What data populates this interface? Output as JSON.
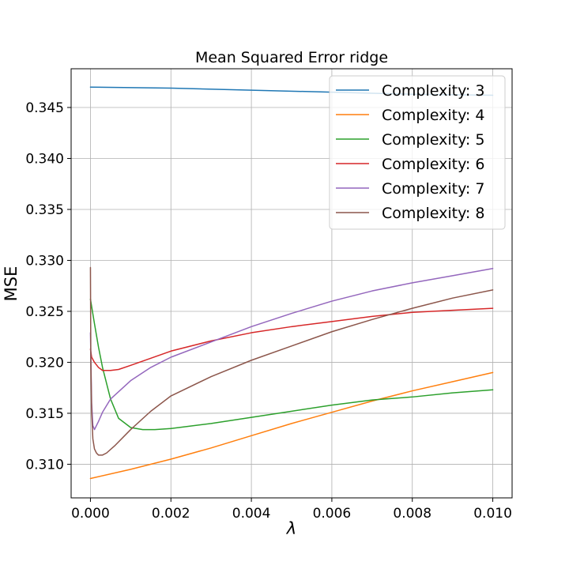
{
  "chart_data": {
    "type": "line",
    "title": "Mean Squared Error ridge",
    "xlabel": "λ",
    "ylabel": "MSE",
    "xlim": [
      -0.00048,
      0.01048
    ],
    "ylim": [
      0.3067,
      0.3488
    ],
    "xticks": [
      0.0,
      0.002,
      0.004,
      0.006,
      0.008,
      0.01
    ],
    "xtick_labels": [
      "0.000",
      "0.002",
      "0.004",
      "0.006",
      "0.008",
      "0.010"
    ],
    "yticks": [
      0.31,
      0.315,
      0.32,
      0.325,
      0.33,
      0.335,
      0.34,
      0.345
    ],
    "ytick_labels": [
      "0.310",
      "0.315",
      "0.320",
      "0.325",
      "0.330",
      "0.335",
      "0.340",
      "0.345"
    ],
    "grid": true,
    "legend_position": "upper-right",
    "series": [
      {
        "name": "Complexity: 3",
        "color": "#1f77b4",
        "x": [
          0.0,
          0.002,
          0.004,
          0.006,
          0.007,
          0.008,
          0.01
        ],
        "y": [
          0.347,
          0.3469,
          0.3467,
          0.3465,
          0.3464,
          0.3463,
          0.3462
        ]
      },
      {
        "name": "Complexity: 4",
        "color": "#ff7f0e",
        "x": [
          0.0,
          0.001,
          0.002,
          0.003,
          0.004,
          0.005,
          0.006,
          0.007,
          0.008,
          0.009,
          0.01
        ],
        "y": [
          0.3086,
          0.3095,
          0.3105,
          0.3116,
          0.3128,
          0.314,
          0.3151,
          0.3162,
          0.3172,
          0.3181,
          0.319
        ]
      },
      {
        "name": "Complexity: 5",
        "color": "#2ca02c",
        "x": [
          0.0,
          5e-05,
          0.0001,
          0.0002,
          0.0003,
          0.0005,
          0.0007,
          0.001,
          0.0013,
          0.0016,
          0.002,
          0.003,
          0.004,
          0.005,
          0.006,
          0.007,
          0.008,
          0.009,
          0.01
        ],
        "y": [
          0.3262,
          0.325,
          0.3238,
          0.3215,
          0.3195,
          0.3164,
          0.3145,
          0.3136,
          0.3134,
          0.3134,
          0.3135,
          0.314,
          0.3146,
          0.3152,
          0.3158,
          0.3163,
          0.3166,
          0.317,
          0.3173
        ]
      },
      {
        "name": "Complexity: 6",
        "color": "#d62728",
        "x": [
          0.0,
          3e-05,
          0.0001,
          0.0002,
          0.0003,
          0.0005,
          0.0007,
          0.001,
          0.0015,
          0.002,
          0.003,
          0.004,
          0.005,
          0.006,
          0.007,
          0.008,
          0.009,
          0.01
        ],
        "y": [
          0.3213,
          0.3205,
          0.32,
          0.3195,
          0.3192,
          0.3192,
          0.3193,
          0.3197,
          0.3204,
          0.3211,
          0.3221,
          0.3229,
          0.3235,
          0.324,
          0.3245,
          0.3249,
          0.3251,
          0.3253
        ]
      },
      {
        "name": "Complexity: 7",
        "color": "#9467bd",
        "x": [
          0.0,
          3e-05,
          6e-05,
          0.0001,
          0.0002,
          0.0003,
          0.0005,
          0.001,
          0.0015,
          0.002,
          0.003,
          0.004,
          0.005,
          0.006,
          0.007,
          0.008,
          0.009,
          0.01
        ],
        "y": [
          0.3229,
          0.316,
          0.3138,
          0.3134,
          0.3142,
          0.3151,
          0.3164,
          0.3182,
          0.3195,
          0.3205,
          0.322,
          0.3235,
          0.3248,
          0.326,
          0.327,
          0.3278,
          0.3285,
          0.3292
        ]
      },
      {
        "name": "Complexity: 8",
        "color": "#8c564b",
        "x": [
          0.0,
          1e-05,
          3e-05,
          6e-05,
          0.0001,
          0.00015,
          0.0002,
          0.0003,
          0.0004,
          0.0006,
          0.001,
          0.0015,
          0.002,
          0.003,
          0.004,
          0.005,
          0.006,
          0.007,
          0.008,
          0.009,
          0.01
        ],
        "y": [
          0.3293,
          0.32,
          0.315,
          0.3125,
          0.3115,
          0.3111,
          0.3109,
          0.3109,
          0.3111,
          0.3118,
          0.3134,
          0.3152,
          0.3167,
          0.3186,
          0.3202,
          0.3216,
          0.323,
          0.3242,
          0.3253,
          0.3263,
          0.3271
        ]
      }
    ]
  }
}
